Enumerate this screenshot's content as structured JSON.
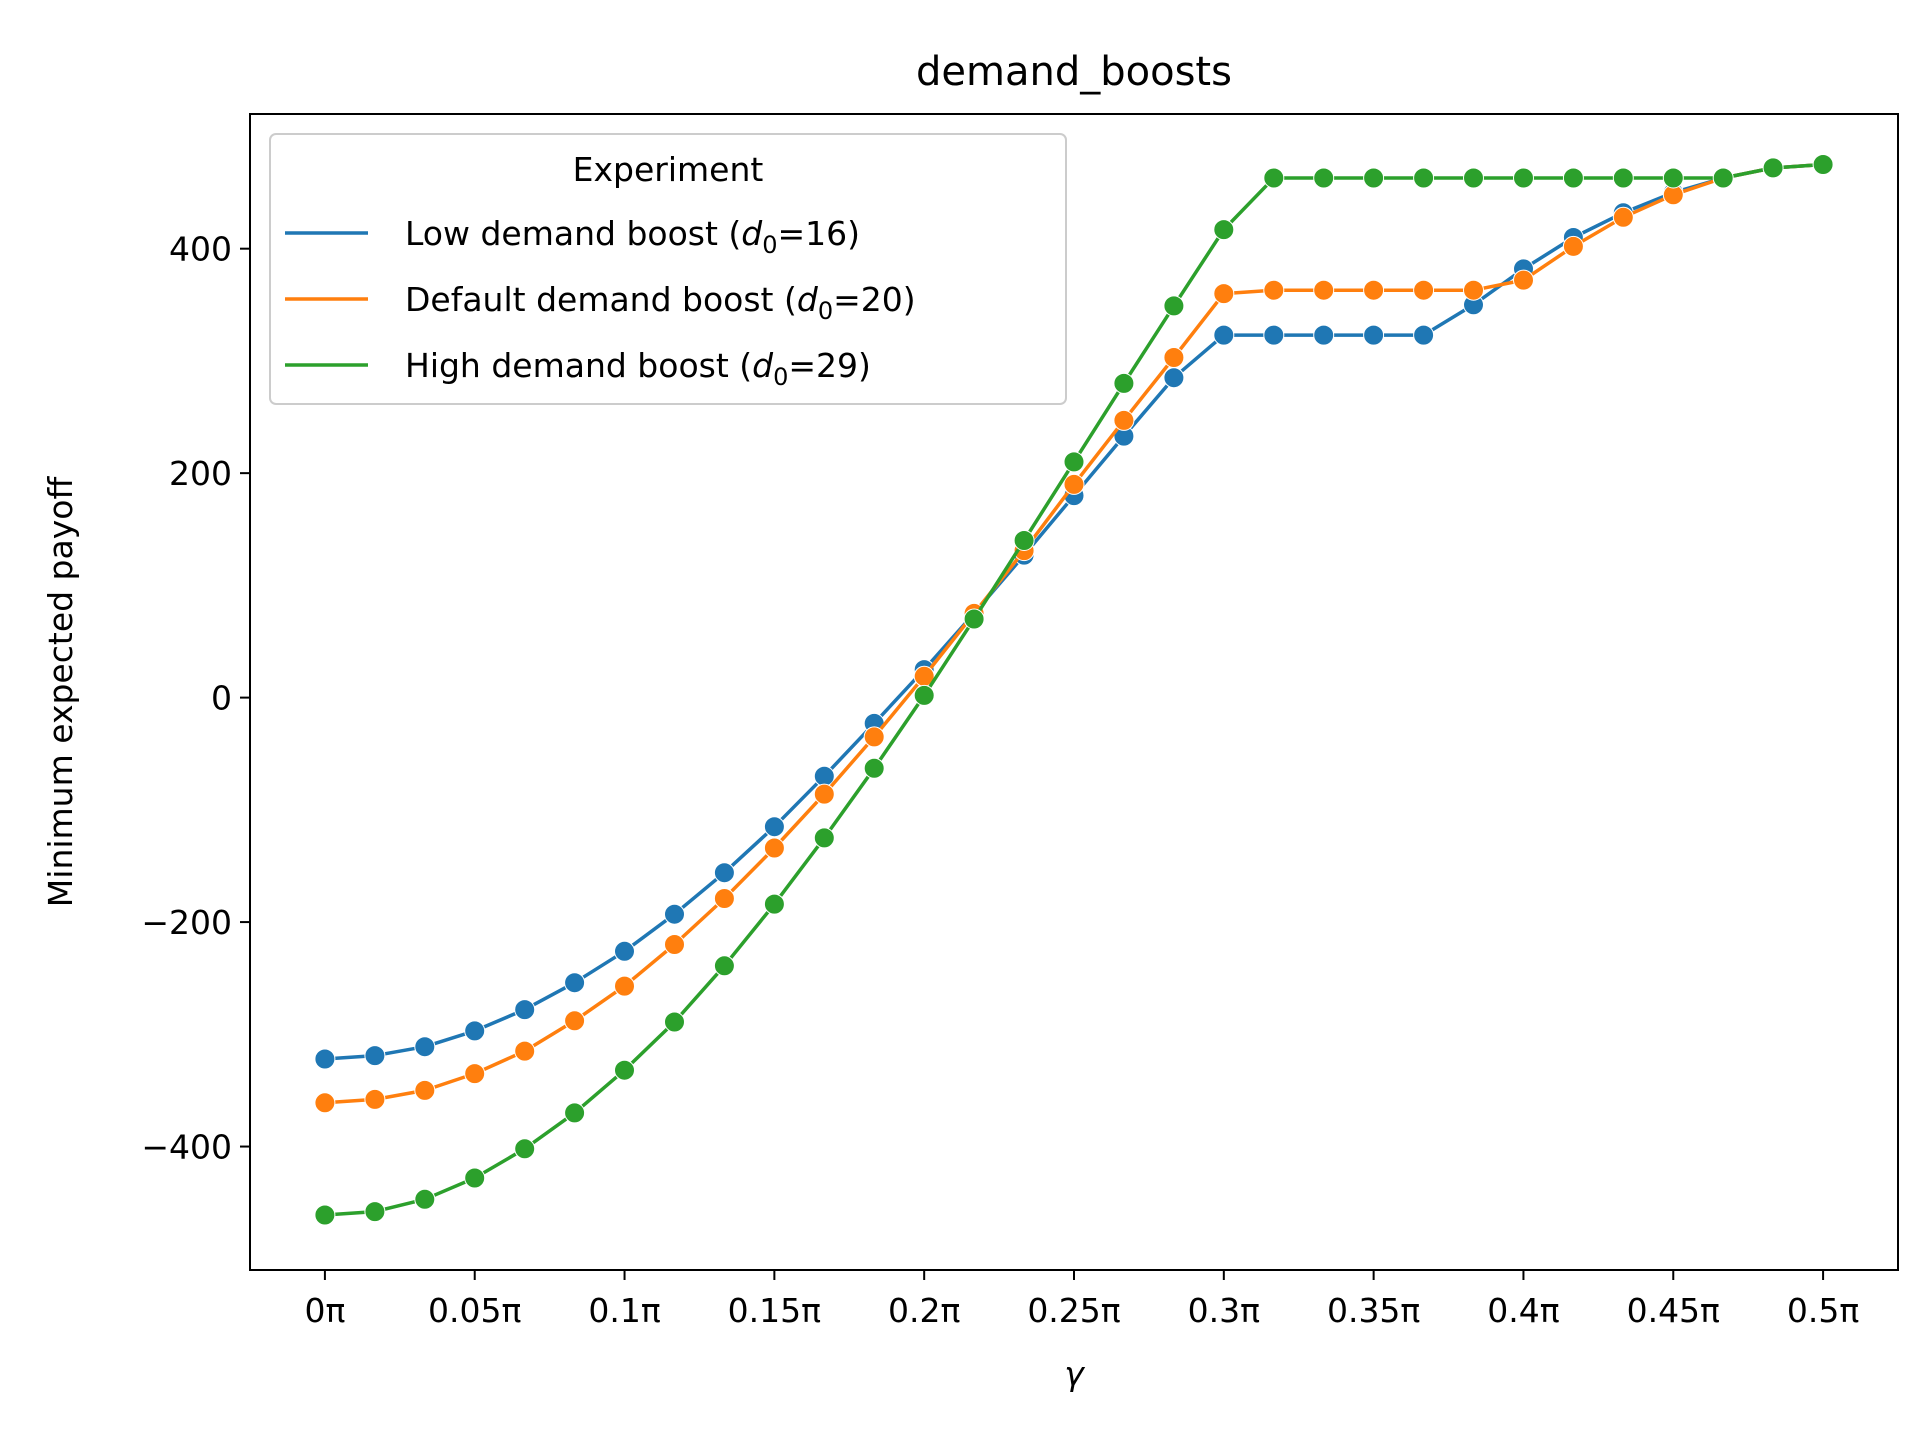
{
  "chart_data": {
    "type": "line",
    "title": "demand_boosts",
    "xlabel": "γ",
    "ylabel": "Minimum expected payoff",
    "xlim": [
      -0.025,
      0.525
    ],
    "ylim": [
      -510,
      520
    ],
    "xticks": [
      0,
      0.05,
      0.1,
      0.15,
      0.2,
      0.25,
      0.3,
      0.35,
      0.4,
      0.45,
      0.5
    ],
    "xtick_labels": [
      "0π",
      "0.05π",
      "0.1π",
      "0.15π",
      "0.2π",
      "0.25π",
      "0.3π",
      "0.35π",
      "0.4π",
      "0.45π",
      "0.5π"
    ],
    "yticks": [
      -400,
      -200,
      0,
      200,
      400
    ],
    "ytick_labels": [
      "−400",
      "−200",
      "0",
      "200",
      "400"
    ],
    "grid": false,
    "legend": {
      "title": "Experiment",
      "placement": "upper-left",
      "entries": [
        {
          "pre": "Low demand boost (",
          "var": "d",
          "sub": "0",
          "post": "=16)",
          "color": "#1f77b4"
        },
        {
          "pre": "Default demand boost (",
          "var": "d",
          "sub": "0",
          "post": "=20)",
          "color": "#ff7f0e"
        },
        {
          "pre": "High demand boost (",
          "var": "d",
          "sub": "0",
          "post": "=29)",
          "color": "#2ca02c"
        }
      ]
    },
    "x_unit": "π",
    "x": [
      0,
      0.01667,
      0.03333,
      0.05,
      0.06667,
      0.08333,
      0.1,
      0.11667,
      0.13333,
      0.15,
      0.16667,
      0.18333,
      0.2,
      0.21667,
      0.23333,
      0.25,
      0.26667,
      0.28333,
      0.3,
      0.31667,
      0.33333,
      0.35,
      0.36667,
      0.38333,
      0.4,
      0.41667,
      0.43333,
      0.45,
      0.46667,
      0.48333,
      0.5
    ],
    "series": [
      {
        "name": "Low demand boost (d0=16)",
        "color": "#1f77b4",
        "values": [
          -322,
          -319,
          -311,
          -297,
          -278,
          -254,
          -226,
          -193,
          -156,
          -115,
          -70,
          -23,
          25,
          75,
          127,
          180,
          233,
          285,
          323,
          323,
          323,
          323,
          323,
          350,
          382,
          410,
          432,
          450,
          463,
          472,
          475
        ]
      },
      {
        "name": "Default demand boost (d0=20)",
        "color": "#ff7f0e",
        "values": [
          -361,
          -358,
          -350,
          -335,
          -315,
          -288,
          -257,
          -220,
          -179,
          -134,
          -86,
          -35,
          19,
          75,
          131,
          190,
          247,
          303,
          360,
          363,
          363,
          363,
          363,
          363,
          372,
          402,
          428,
          448,
          463,
          472,
          475
        ]
      },
      {
        "name": "High demand boost (d0=29)",
        "color": "#2ca02c",
        "values": [
          -461,
          -458,
          -447,
          -428,
          -402,
          -370,
          -332,
          -289,
          -239,
          -184,
          -125,
          -63,
          2,
          70,
          140,
          210,
          280,
          349,
          417,
          463,
          463,
          463,
          463,
          463,
          463,
          463,
          463,
          463,
          463,
          472,
          475
        ]
      }
    ]
  }
}
